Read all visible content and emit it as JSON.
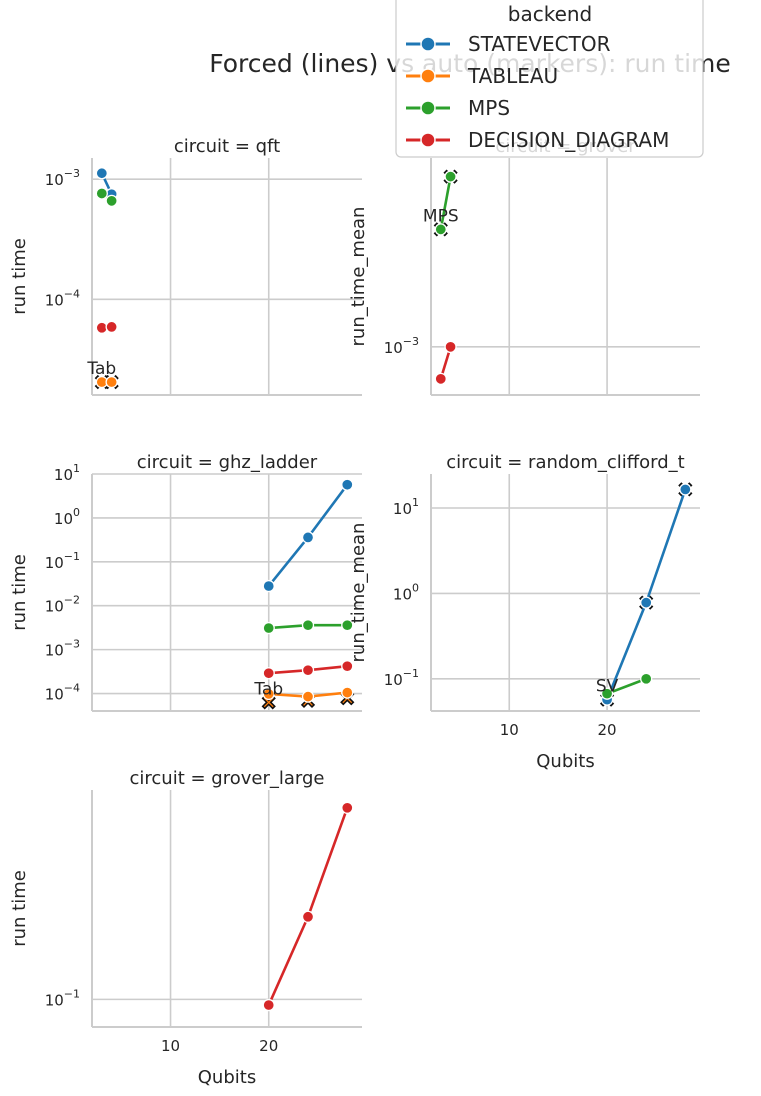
{
  "figure": {
    "suptitle": "Forced (lines) vs auto (markers): run time",
    "x_label": "Qubits",
    "legend_title": "backend"
  },
  "legend": [
    {
      "name": "STATEVECTOR",
      "color": "#1f77b4"
    },
    {
      "name": "TABLEAU",
      "color": "#ff7f0e"
    },
    {
      "name": "MPS",
      "color": "#2ca02c"
    },
    {
      "name": "DECISION_DIAGRAM",
      "color": "#d62728"
    }
  ],
  "chart_data": [
    {
      "type": "line",
      "title": "circuit = qft",
      "ylabel": "run time",
      "xlabel": "",
      "yscale": "log",
      "ylim": [
        1.6e-05,
        0.0015
      ],
      "xlim": [
        2,
        29.5
      ],
      "xticks": [
        10,
        20
      ],
      "show_xticklabels": false,
      "yticks": [
        0.0001,
        0.001
      ],
      "ytick_labels": [
        [
          "10",
          "−4"
        ],
        [
          "10",
          "−3"
        ]
      ],
      "grid": true,
      "series": [
        {
          "name": "STATEVECTOR",
          "color": "#1f77b4",
          "x": [
            3,
            4
          ],
          "y": [
            0.00112,
            0.00075
          ]
        },
        {
          "name": "TABLEAU",
          "color": "#ff7f0e",
          "x": [
            3,
            4
          ],
          "y": [
            2.05e-05,
            2.05e-05
          ]
        },
        {
          "name": "MPS",
          "color": "#2ca02c",
          "x": [
            3,
            4
          ],
          "y": [
            0.00076,
            0.00066
          ]
        },
        {
          "name": "DECISION_DIAGRAM",
          "color": "#d62728",
          "x": [
            3,
            4
          ],
          "y": [
            5.8e-05,
            5.9e-05
          ]
        }
      ],
      "auto_markers": [
        {
          "x": 3,
          "y": 2.05e-05,
          "color": "#ff7f0e"
        },
        {
          "x": 4,
          "y": 2.05e-05,
          "color": "#ff7f0e"
        }
      ],
      "annotations": [
        {
          "text": "Tab",
          "x": 3,
          "y": 2.05e-05
        }
      ]
    },
    {
      "type": "line",
      "title": "circuit = grover",
      "ylabel": "run_time_mean",
      "xlabel": "",
      "yscale": "log",
      "ylim": [
        0.00061,
        0.00695
      ],
      "xlim": [
        2,
        29.5
      ],
      "xticks": [
        10,
        20
      ],
      "show_xticklabels": false,
      "yticks": [
        0.001
      ],
      "ytick_labels": [
        [
          "10",
          "−3"
        ]
      ],
      "grid": true,
      "series": [
        {
          "name": "MPS",
          "color": "#2ca02c",
          "x": [
            3,
            4
          ],
          "y": [
            0.00334,
            0.00574
          ]
        },
        {
          "name": "DECISION_DIAGRAM",
          "color": "#d62728",
          "x": [
            3,
            4
          ],
          "y": [
            0.00072,
            0.001
          ]
        }
      ],
      "auto_markers": [
        {
          "x": 3,
          "y": 0.00334,
          "color": "#2ca02c"
        },
        {
          "x": 4,
          "y": 0.00574,
          "color": "#2ca02c"
        }
      ],
      "annotations": [
        {
          "text": "MPS",
          "x": 3,
          "y": 0.00334
        }
      ]
    },
    {
      "type": "line",
      "title": "circuit = ghz_ladder",
      "ylabel": "run time",
      "xlabel": "",
      "yscale": "log",
      "ylim": [
        4e-05,
        10
      ],
      "xlim": [
        2,
        29.5
      ],
      "xticks": [
        10,
        20
      ],
      "show_xticklabels": false,
      "yticks": [
        0.0001,
        0.001,
        0.01,
        0.1,
        1,
        10
      ],
      "ytick_labels": [
        [
          "10",
          "−4"
        ],
        [
          "10",
          "−3"
        ],
        [
          "10",
          "−2"
        ],
        [
          "10",
          "−1"
        ],
        [
          "10",
          "0"
        ],
        [
          "10",
          "1"
        ]
      ],
      "grid": true,
      "series": [
        {
          "name": "STATEVECTOR",
          "color": "#1f77b4",
          "x": [
            20,
            24,
            28
          ],
          "y": [
            0.028,
            0.36,
            5.7
          ]
        },
        {
          "name": "TABLEAU",
          "color": "#ff7f0e",
          "x": [
            20,
            24,
            28
          ],
          "y": [
            9.8e-05,
            8.5e-05,
            0.000105
          ]
        },
        {
          "name": "MPS",
          "color": "#2ca02c",
          "x": [
            20,
            24,
            28
          ],
          "y": [
            0.0031,
            0.0036,
            0.0036
          ]
        },
        {
          "name": "DECISION_DIAGRAM",
          "color": "#d62728",
          "x": [
            20,
            24,
            28
          ],
          "y": [
            0.00029,
            0.00034,
            0.00042
          ]
        }
      ],
      "auto_markers": [
        {
          "x": 20,
          "y": 6.3e-05,
          "color": "#ff7f0e"
        },
        {
          "x": 24,
          "y": 6.8e-05,
          "color": "#ff7f0e"
        },
        {
          "x": 28,
          "y": 7.8e-05,
          "color": "#ff7f0e"
        }
      ],
      "annotations": [
        {
          "text": "Tab",
          "x": 20,
          "y": 6.3e-05
        }
      ]
    },
    {
      "type": "line",
      "title": "circuit = random_clifford_t",
      "ylabel": "run_time_mean",
      "xlabel": "Qubits",
      "yscale": "log",
      "ylim": [
        0.042,
        25
      ],
      "xlim": [
        2,
        29.5
      ],
      "xticks": [
        10,
        20
      ],
      "xtick_labels": [
        "10",
        "20"
      ],
      "show_xticklabels": true,
      "yticks": [
        0.1,
        1,
        10
      ],
      "ytick_labels": [
        [
          "10",
          "−1"
        ],
        [
          "10",
          "0"
        ],
        [
          "10",
          "1"
        ]
      ],
      "grid": true,
      "series": [
        {
          "name": "STATEVECTOR",
          "color": "#1f77b4",
          "x": [
            20,
            24,
            28
          ],
          "y": [
            0.057,
            0.78,
            16.5
          ]
        },
        {
          "name": "MPS",
          "color": "#2ca02c",
          "x": [
            20,
            24
          ],
          "y": [
            0.067,
            0.1
          ]
        }
      ],
      "auto_markers": [
        {
          "x": 20,
          "y": 0.057,
          "color": "#1f77b4"
        },
        {
          "x": 24,
          "y": 0.78,
          "color": "#1f77b4"
        },
        {
          "x": 28,
          "y": 16.5,
          "color": "#1f77b4"
        }
      ],
      "annotations": [
        {
          "text": "SV",
          "x": 20,
          "y": 0.057
        }
      ]
    },
    {
      "type": "line",
      "title": "circuit = grover_large",
      "ylabel": "run time",
      "xlabel": "Qubits",
      "yscale": "log",
      "ylim": [
        0.082,
        0.45
      ],
      "xlim": [
        2,
        29.5
      ],
      "xticks": [
        10,
        20
      ],
      "xtick_labels": [
        "10",
        "20"
      ],
      "show_xticklabels": true,
      "yticks": [
        0.1
      ],
      "ytick_labels": [
        [
          "10",
          "−1"
        ]
      ],
      "grid": true,
      "series": [
        {
          "name": "DECISION_DIAGRAM",
          "color": "#d62728",
          "x": [
            20,
            24,
            28
          ],
          "y": [
            0.096,
            0.181,
            0.396
          ]
        }
      ],
      "auto_markers": [],
      "annotations": []
    }
  ]
}
